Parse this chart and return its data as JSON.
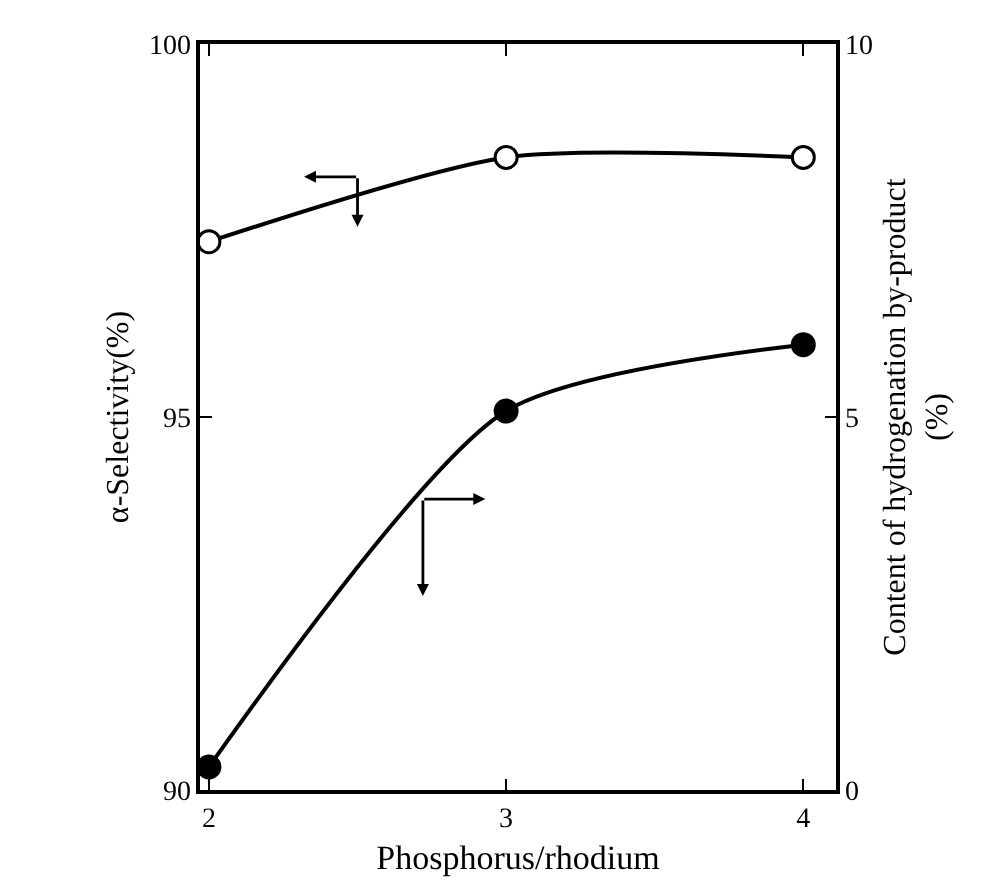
{
  "chart_data": {
    "type": "line",
    "xlabel": "Phosphorus/rhodium",
    "ylabel": "α-Selectivity(%)",
    "y2label": "Content of hydrogenation by-product\n(%)",
    "x": [
      2,
      3,
      4
    ],
    "series": [
      {
        "color": "#000000",
        "values": [
          97.35,
          98.48,
          98.48
        ]
      },
      {
        "color": "#000000",
        "values": [
          0.31,
          5.08,
          5.97
        ],
        "axis": "y2"
      }
    ],
    "xlim": [
      1.97,
      4.11
    ],
    "xticks": [
      2,
      3,
      4
    ],
    "ylim": [
      90,
      100
    ],
    "yticks": [
      90,
      95,
      100
    ],
    "y2lim": [
      0,
      10
    ],
    "y2ticks": [
      0,
      5,
      10
    ],
    "grid": false,
    "marker": "circle",
    "line_style": "solid"
  }
}
